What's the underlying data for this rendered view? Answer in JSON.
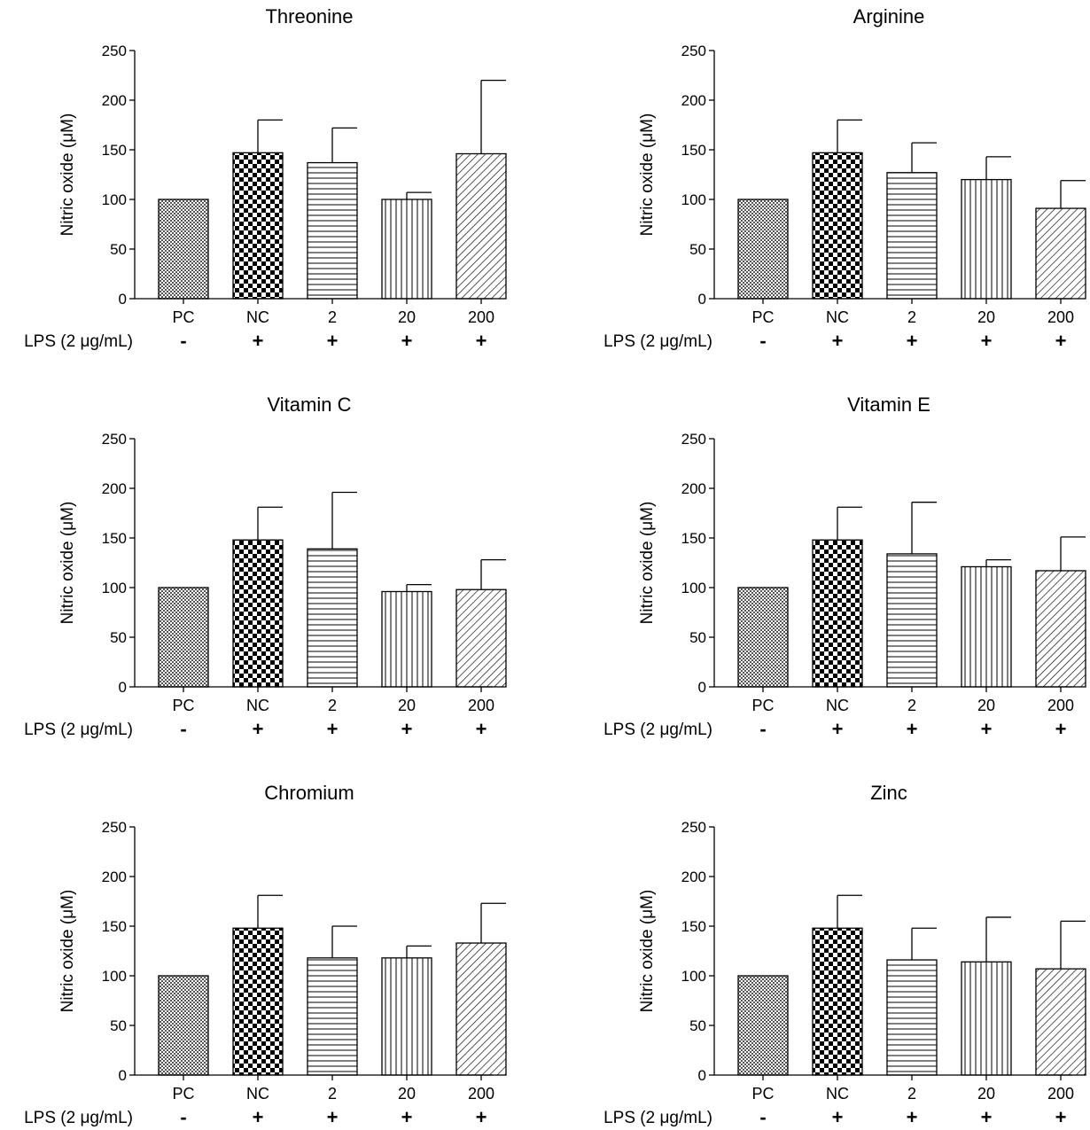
{
  "figure": {
    "ylabel": "Nitric oxide (μM)",
    "lps_label": "LPS (2 μg/mL)",
    "categories": [
      "PC",
      "NC",
      "2",
      "20",
      "200"
    ],
    "lps_signs": [
      "-",
      "+",
      "+",
      "+",
      "+"
    ],
    "yticks": [
      0,
      50,
      100,
      150,
      200,
      250
    ]
  },
  "chart_data": [
    {
      "type": "bar",
      "title": "Threonine",
      "categories": [
        "PC",
        "NC",
        "2",
        "20",
        "200"
      ],
      "values": [
        100,
        147,
        137,
        100,
        146
      ],
      "error_upper": [
        100,
        180,
        172,
        107,
        220
      ],
      "ylabel": "Nitric oxide (μM)",
      "ylim": [
        0,
        250
      ]
    },
    {
      "type": "bar",
      "title": "Arginine",
      "categories": [
        "PC",
        "NC",
        "2",
        "20",
        "200"
      ],
      "values": [
        100,
        147,
        127,
        120,
        91
      ],
      "error_upper": [
        100,
        180,
        157,
        143,
        119
      ],
      "ylabel": "Nitric oxide (μM)",
      "ylim": [
        0,
        250
      ]
    },
    {
      "type": "bar",
      "title": "Vitamin C",
      "categories": [
        "PC",
        "NC",
        "2",
        "20",
        "200"
      ],
      "values": [
        100,
        148,
        139,
        96,
        98
      ],
      "error_upper": [
        100,
        181,
        196,
        103,
        128
      ],
      "ylabel": "Nitric oxide (μM)",
      "ylim": [
        0,
        250
      ]
    },
    {
      "type": "bar",
      "title": "Vitamin E",
      "categories": [
        "PC",
        "NC",
        "2",
        "20",
        "200"
      ],
      "values": [
        100,
        148,
        134,
        121,
        117
      ],
      "error_upper": [
        100,
        181,
        186,
        128,
        151
      ],
      "ylabel": "Nitric oxide (μM)",
      "ylim": [
        0,
        250
      ]
    },
    {
      "type": "bar",
      "title": "Chromium",
      "categories": [
        "PC",
        "NC",
        "2",
        "20",
        "200"
      ],
      "values": [
        100,
        148,
        118,
        118,
        133
      ],
      "error_upper": [
        100,
        181,
        150,
        130,
        173
      ],
      "ylabel": "Nitric oxide (μM)",
      "ylim": [
        0,
        250
      ]
    },
    {
      "type": "bar",
      "title": "Zinc",
      "categories": [
        "PC",
        "NC",
        "2",
        "20",
        "200"
      ],
      "values": [
        100,
        148,
        116,
        114,
        107
      ],
      "error_upper": [
        100,
        181,
        148,
        159,
        155
      ],
      "ylabel": "Nitric oxide (μM)",
      "ylim": [
        0,
        250
      ]
    }
  ]
}
